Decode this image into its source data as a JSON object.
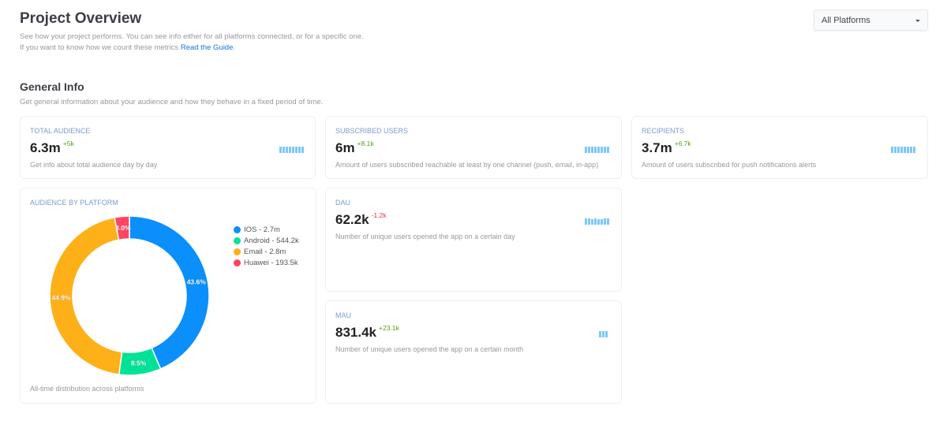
{
  "header": {
    "title": "Project Overview",
    "line1": "See how your project performs. You can see info either for all platforms connected, or for a specific one.",
    "line2_prefix": "If you want to know how we count these metrics ",
    "guide_link": "Read the Guide",
    "line2_suffix": "."
  },
  "platform_select": {
    "value": "All Platforms"
  },
  "general": {
    "title": "General Info",
    "subtitle": "Get general information about your audience and how they behave in a fixed period of time."
  },
  "cards": [
    {
      "title": "Total Audience",
      "value": "6.3m",
      "delta": "+5k",
      "trend": "up",
      "desc": "Get info about total audience day by day",
      "spark": [
        1,
        1,
        1,
        1,
        1,
        1,
        1,
        1
      ]
    },
    {
      "title": "Subscribed Users",
      "value": "6m",
      "delta": "+8.1k",
      "trend": "up",
      "desc": "Amount of users subscribed reachable at least by one channel (push, email, in-app)",
      "spark": [
        1,
        1,
        1,
        1,
        1,
        1,
        1,
        1
      ]
    },
    {
      "title": "Recipients",
      "value": "3.7m",
      "delta": "+6.7k",
      "trend": "up",
      "desc": "Amount of users subscribed for push notifications alerts",
      "spark": [
        1,
        1,
        1,
        1,
        1,
        1,
        1,
        1
      ]
    },
    {
      "title": "DAU",
      "value": "62.2k",
      "delta": "-1.2k",
      "trend": "down",
      "desc": "Number of unique users opened the app on a certain day",
      "spark": [
        1,
        1,
        0.9,
        1,
        0.85,
        0.9,
        1,
        1
      ]
    },
    {
      "title": "MAU",
      "value": "831.4k",
      "delta": "+23.1k",
      "trend": "up",
      "desc": "Number of unique users opened the app on a certain month",
      "spark": [
        1,
        1,
        1
      ]
    }
  ],
  "audience": {
    "title": "Audience by Platform",
    "footer": "All-time distribution across platforms"
  },
  "chart_data": {
    "type": "pie",
    "donut": true,
    "slices": [
      {
        "name": "IOS",
        "label": "IOS - 2.7m",
        "percent": 43.6,
        "pct_label": "43.6%",
        "color": "#0a8ffb"
      },
      {
        "name": "Android",
        "label": "Android - 544.2k",
        "percent": 8.5,
        "pct_label": "8.5%",
        "color": "#00e396"
      },
      {
        "name": "Email",
        "label": "Email - 2.8m",
        "percent": 44.9,
        "pct_label": "44.9%",
        "color": "#feb019"
      },
      {
        "name": "Huawei",
        "label": "Huawei - 193.5k",
        "percent": 3.0,
        "pct_label": "3.0%",
        "color": "#ff4560"
      }
    ],
    "legend_position": "right"
  }
}
